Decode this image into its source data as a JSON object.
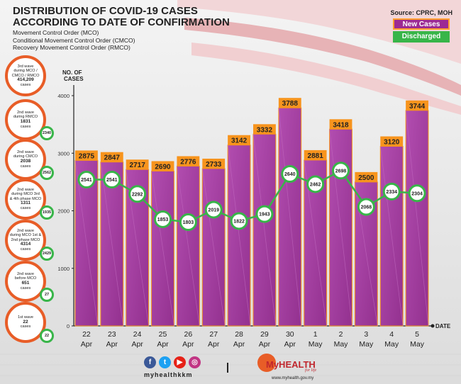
{
  "header": {
    "title_line1": "DISTRIBUTION OF COVID-19 CASES",
    "title_line2": "ACCORDING TO DATE OF CONFIRMATION",
    "lines": [
      "Movement Control Order (MCO)",
      "Conditional Movement Control Order (CMCO)",
      "Recovery Movement Control Order (RMCO)"
    ],
    "source": "Source: CPRC, MOH"
  },
  "legend": {
    "new_cases": "New Cases",
    "discharged": "Discharged"
  },
  "colors": {
    "new_cases": "#a83aa7",
    "discharged": "#38b549",
    "label_bg": "#f7941d",
    "wave_border": "#e85d27"
  },
  "waves": [
    {
      "text": "3rd wave\nduring MCO /\nCMCO / RMCO",
      "cases": "414,209",
      "unit": "cases",
      "discharged": ""
    },
    {
      "text": "2nd wave\nduring RMCO",
      "cases": "1831",
      "unit": "cases",
      "discharged": "2340"
    },
    {
      "text": "2nd wave\nduring CMCO",
      "cases": "2038",
      "unit": "cases",
      "discharged": "2562"
    },
    {
      "text": "2nd wave\nduring MCO 3rd\n& 4th phase MCO",
      "cases": "1311",
      "unit": "cases",
      "discharged": "1935"
    },
    {
      "text": "2nd wave\nduring MCO 1st &\n2nd phase MCO",
      "cases": "4314",
      "unit": "cases",
      "discharged": "2429"
    },
    {
      "text": "2nd wave\nbefore MCO",
      "cases": "651",
      "unit": "cases",
      "discharged": "27"
    },
    {
      "text": "1st wave",
      "cases": "22",
      "unit": "cases",
      "discharged": "22"
    }
  ],
  "footer": {
    "handle": "myhealthkkm",
    "brand": "MyHEALTH",
    "tagline": "for life",
    "url": "www.myhealth.gov.my"
  },
  "chart_data": {
    "type": "bar",
    "ylabel": "NO. OF CASES",
    "xlabel": "DATE",
    "ylim": [
      0,
      4000
    ],
    "yticks": [
      0,
      1000,
      2000,
      3000,
      4000
    ],
    "categories": [
      {
        "day": "22",
        "month": "Apr"
      },
      {
        "day": "23",
        "month": "Apr"
      },
      {
        "day": "24",
        "month": "Apr"
      },
      {
        "day": "25",
        "month": "Apr"
      },
      {
        "day": "26",
        "month": "Apr"
      },
      {
        "day": "27",
        "month": "Apr"
      },
      {
        "day": "28",
        "month": "Apr"
      },
      {
        "day": "29",
        "month": "Apr"
      },
      {
        "day": "30",
        "month": "Apr"
      },
      {
        "day": "1",
        "month": "May"
      },
      {
        "day": "2",
        "month": "May"
      },
      {
        "day": "3",
        "month": "May"
      },
      {
        "day": "4",
        "month": "May"
      },
      {
        "day": "5",
        "month": "May"
      }
    ],
    "series": [
      {
        "name": "New Cases",
        "type": "bar",
        "values": [
          2875,
          2847,
          2717,
          2690,
          2776,
          2733,
          3142,
          3332,
          3788,
          2881,
          3418,
          2500,
          3120,
          3744
        ]
      },
      {
        "name": "Discharged",
        "type": "line",
        "values": [
          2541,
          2541,
          2292,
          1853,
          1803,
          2019,
          1822,
          1943,
          2640,
          2462,
          2698,
          2068,
          2334,
          2304
        ]
      }
    ]
  }
}
